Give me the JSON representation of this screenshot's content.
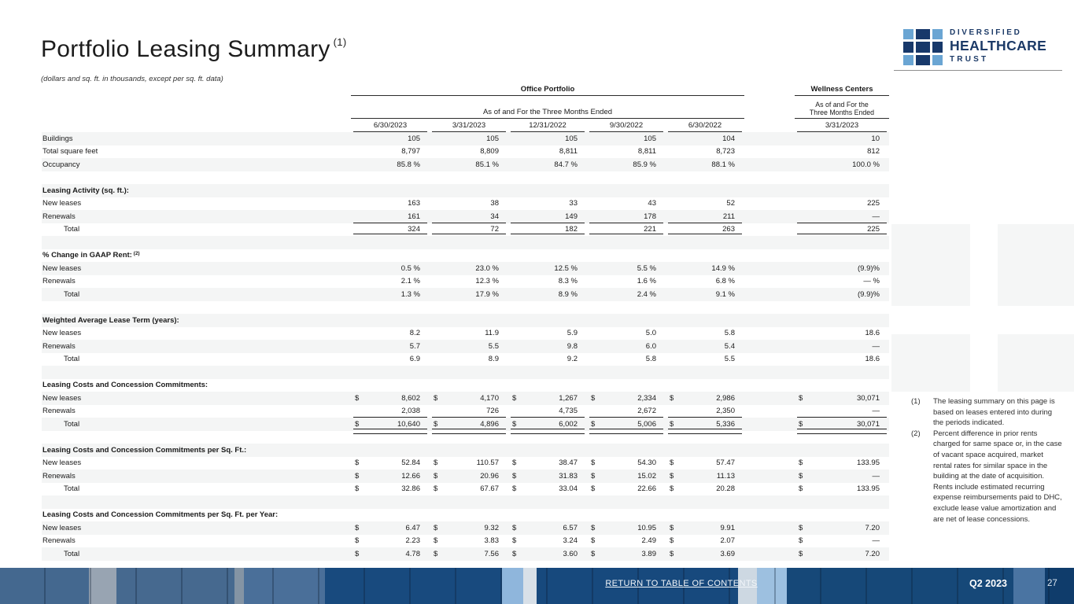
{
  "page": {
    "title": "Portfolio Leasing Summary",
    "title_superscript": "(1)",
    "subtitle": "(dollars and sq. ft. in thousands, except per sq. ft. data)"
  },
  "logo": {
    "line1": "DIVERSIFIED",
    "line2": "HEALTHCARE",
    "line3": "TRUST",
    "dark_color": "#17386a",
    "light_color": "#6aa5d3"
  },
  "table": {
    "group_headers": [
      {
        "label": "Office Portfolio",
        "span": 5
      },
      {
        "label": "Wellness Centers",
        "span": 1
      }
    ],
    "office_subheader": "As of and For the Three Months Ended",
    "wellness_subheader_line1": "As of and For the",
    "wellness_subheader_line2": "Three Months Ended",
    "office_columns": [
      "6/30/2023",
      "3/31/2023",
      "12/31/2022",
      "9/30/2022",
      "6/30/2022"
    ],
    "wellness_columns": [
      "3/31/2023"
    ],
    "rows": [
      {
        "type": "data",
        "label": "Buildings",
        "values": [
          "105",
          "105",
          "105",
          "105",
          "104",
          "10"
        ]
      },
      {
        "type": "data",
        "label": "Total square feet",
        "values": [
          "8,797",
          "8,809",
          "8,811",
          "8,811",
          "8,723",
          "812"
        ]
      },
      {
        "type": "data",
        "label": "Occupancy",
        "values": [
          "85.8 %",
          "85.1 %",
          "84.7 %",
          "85.9 %",
          "88.1 %",
          "100.0 %"
        ]
      },
      {
        "type": "spacer"
      },
      {
        "type": "section",
        "label": "Leasing Activity (sq. ft.):"
      },
      {
        "type": "data",
        "label": "New leases",
        "values": [
          "163",
          "38",
          "33",
          "43",
          "52",
          "225"
        ]
      },
      {
        "type": "data",
        "label": "Renewals",
        "values": [
          "161",
          "34",
          "149",
          "178",
          "211",
          "—"
        ],
        "rule_below": "single"
      },
      {
        "type": "data",
        "label": "Total",
        "indent": 1,
        "values": [
          "324",
          "72",
          "182",
          "221",
          "263",
          "225"
        ],
        "rule_below": "double"
      },
      {
        "type": "spacer"
      },
      {
        "type": "section",
        "label": "% Change in GAAP Rent:",
        "sup": "(2)"
      },
      {
        "type": "data",
        "label": "New leases",
        "values": [
          "0.5 %",
          "23.0 %",
          "12.5 %",
          "5.5 %",
          "14.9 %",
          "(9.9)%"
        ]
      },
      {
        "type": "data",
        "label": "Renewals",
        "values": [
          "2.1 %",
          "12.3 %",
          "8.3 %",
          "1.6 %",
          "6.8 %",
          "— %"
        ]
      },
      {
        "type": "data",
        "label": "Total",
        "indent": 1,
        "values": [
          "1.3 %",
          "17.9 %",
          "8.9 %",
          "2.4 %",
          "9.1 %",
          "(9.9)%"
        ]
      },
      {
        "type": "spacer"
      },
      {
        "type": "section",
        "label": "Weighted Average Lease Term (years):"
      },
      {
        "type": "data",
        "label": "New leases",
        "values": [
          "8.2",
          "11.9",
          "5.9",
          "5.0",
          "5.8",
          "18.6"
        ]
      },
      {
        "type": "data",
        "label": "Renewals",
        "values": [
          "5.7",
          "5.5",
          "9.8",
          "6.0",
          "5.4",
          "—"
        ]
      },
      {
        "type": "data",
        "label": "Total",
        "indent": 1,
        "values": [
          "6.9",
          "8.9",
          "9.2",
          "5.8",
          "5.5",
          "18.6"
        ]
      },
      {
        "type": "spacer"
      },
      {
        "type": "section",
        "label": "Leasing Costs and Concession Commitments:"
      },
      {
        "type": "data",
        "label": "New leases",
        "values": [
          "$ 8,602",
          "$ 4,170",
          "$ 1,267",
          "$ 2,334",
          "$ 2,986",
          "$ 30,071"
        ]
      },
      {
        "type": "data",
        "label": "Renewals",
        "values": [
          "2,038",
          "726",
          "4,735",
          "2,672",
          "2,350",
          "—"
        ],
        "rule_below": "single"
      },
      {
        "type": "data",
        "label": "Total",
        "indent": 1,
        "values": [
          "$ 10,640",
          "$ 4,896",
          "$ 6,002",
          "$ 5,006",
          "$ 5,336",
          "$ 30,071"
        ],
        "rule_below": "double"
      },
      {
        "type": "spacer"
      },
      {
        "type": "section",
        "label": "Leasing Costs and Concession Commitments per Sq. Ft.:"
      },
      {
        "type": "data",
        "label": "New leases",
        "values": [
          "$ 52.84",
          "$ 110.57",
          "$ 38.47",
          "$ 54.30",
          "$ 57.47",
          "$ 133.95"
        ]
      },
      {
        "type": "data",
        "label": "Renewals",
        "values": [
          "$ 12.66",
          "$ 20.96",
          "$ 31.83",
          "$ 15.02",
          "$ 11.13",
          "$ —"
        ]
      },
      {
        "type": "data",
        "label": "Total",
        "indent": 1,
        "values": [
          "$ 32.86",
          "$ 67.67",
          "$ 33.04",
          "$ 22.66",
          "$ 20.28",
          "$ 133.95"
        ]
      },
      {
        "type": "spacer"
      },
      {
        "type": "section",
        "label": "Leasing Costs and Concession Commitments per Sq. Ft. per Year:"
      },
      {
        "type": "data",
        "label": "New leases",
        "values": [
          "$ 6.47",
          "$ 9.32",
          "$ 6.57",
          "$ 10.95",
          "$ 9.91",
          "$ 7.20"
        ]
      },
      {
        "type": "data",
        "label": "Renewals",
        "values": [
          "$ 2.23",
          "$ 3.83",
          "$ 3.24",
          "$ 2.49",
          "$ 2.07",
          "$ —"
        ]
      },
      {
        "type": "data",
        "label": "Total",
        "indent": 1,
        "values": [
          "$ 4.78",
          "$ 7.56",
          "$ 3.60",
          "$ 3.89",
          "$ 3.69",
          "$ 7.20"
        ]
      }
    ]
  },
  "footnotes": [
    {
      "marker": "(1)",
      "text": "The leasing summary on this page is based on leases entered into during the periods indicated."
    },
    {
      "marker": "(2)",
      "text": "Percent difference in prior rents charged for same space or, in the case of vacant space acquired, market rental rates for similar space in the building at the date of acquisition. Rents include estimated recurring expense reimbursements paid to DHC, exclude lease value amortization and are net of lease concessions."
    }
  ],
  "footer": {
    "link": "RETURN TO TABLE OF CONTENTS",
    "quarter": "Q2 2023",
    "page_number": "27"
  }
}
